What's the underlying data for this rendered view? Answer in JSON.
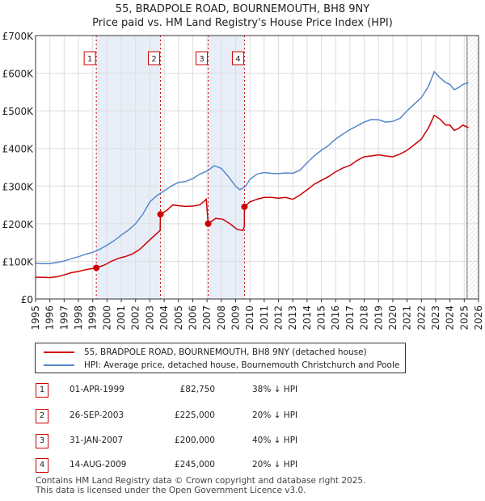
{
  "chart_data": {
    "type": "line",
    "title": "55, BRADPOLE ROAD, BOURNEMOUTH, BH8 9NY",
    "subtitle": "Price paid vs. HM Land Registry's House Price Index (HPI)",
    "xlim": [
      1995,
      2026
    ],
    "ylim": [
      0,
      700000
    ],
    "y_ticks": [
      {
        "value": 0,
        "label": "£0"
      },
      {
        "value": 100000,
        "label": "£100K"
      },
      {
        "value": 200000,
        "label": "£200K"
      },
      {
        "value": 300000,
        "label": "£300K"
      },
      {
        "value": 400000,
        "label": "£400K"
      },
      {
        "value": 500000,
        "label": "£500K"
      },
      {
        "value": 600000,
        "label": "£600K"
      },
      {
        "value": 700000,
        "label": "£700K"
      }
    ],
    "x_ticks": [
      "1995",
      "1996",
      "1997",
      "1998",
      "1999",
      "2000",
      "2001",
      "2002",
      "2003",
      "2004",
      "2005",
      "2006",
      "2007",
      "2008",
      "2009",
      "2010",
      "2011",
      "2012",
      "2013",
      "2014",
      "2015",
      "2016",
      "2017",
      "2018",
      "2019",
      "2020",
      "2021",
      "2022",
      "2023",
      "2024",
      "2025",
      "2026"
    ],
    "grid": true,
    "shaded_periods": [
      [
        1999.25,
        2003.73
      ],
      [
        2007.08,
        2009.62
      ]
    ],
    "forecast_start": 2025.2,
    "series": [
      {
        "name": "55, BRADPOLE ROAD, BOURNEMOUTH, BH8 9NY (detached house)",
        "color": "#cc0000",
        "points": [
          [
            1995.0,
            58000
          ],
          [
            1995.5,
            57500
          ],
          [
            1996.0,
            57000
          ],
          [
            1996.5,
            59000
          ],
          [
            1997.0,
            64000
          ],
          [
            1997.5,
            70000
          ],
          [
            1998.0,
            73000
          ],
          [
            1998.5,
            78000
          ],
          [
            1999.25,
            82750
          ],
          [
            1999.8,
            90000
          ],
          [
            2000.3,
            100000
          ],
          [
            2000.8,
            108000
          ],
          [
            2001.3,
            113000
          ],
          [
            2001.8,
            120000
          ],
          [
            2002.3,
            132000
          ],
          [
            2002.8,
            150000
          ],
          [
            2003.3,
            168000
          ],
          [
            2003.72,
            182000
          ],
          [
            2003.74,
            225000
          ],
          [
            2004.2,
            236000
          ],
          [
            2004.6,
            250000
          ],
          [
            2005.0,
            248000
          ],
          [
            2005.5,
            246000
          ],
          [
            2006.0,
            247000
          ],
          [
            2006.5,
            250000
          ],
          [
            2006.95,
            265000
          ],
          [
            2007.07,
            205000
          ],
          [
            2007.1,
            200000
          ],
          [
            2007.6,
            214000
          ],
          [
            2008.1,
            212000
          ],
          [
            2008.6,
            200000
          ],
          [
            2009.1,
            185000
          ],
          [
            2009.5,
            182000
          ],
          [
            2009.61,
            192000
          ],
          [
            2009.62,
            245000
          ],
          [
            2010.0,
            258000
          ],
          [
            2010.5,
            265000
          ],
          [
            2011.0,
            270000
          ],
          [
            2011.5,
            270000
          ],
          [
            2012.0,
            268000
          ],
          [
            2012.5,
            270000
          ],
          [
            2013.0,
            265000
          ],
          [
            2013.5,
            276000
          ],
          [
            2014.0,
            290000
          ],
          [
            2014.5,
            305000
          ],
          [
            2015.0,
            315000
          ],
          [
            2015.5,
            325000
          ],
          [
            2016.0,
            338000
          ],
          [
            2016.5,
            348000
          ],
          [
            2017.0,
            355000
          ],
          [
            2017.5,
            368000
          ],
          [
            2018.0,
            378000
          ],
          [
            2018.5,
            380000
          ],
          [
            2019.0,
            383000
          ],
          [
            2019.5,
            380000
          ],
          [
            2020.0,
            378000
          ],
          [
            2020.5,
            385000
          ],
          [
            2021.0,
            395000
          ],
          [
            2021.5,
            410000
          ],
          [
            2022.0,
            425000
          ],
          [
            2022.5,
            455000
          ],
          [
            2022.9,
            488000
          ],
          [
            2023.3,
            478000
          ],
          [
            2023.7,
            462000
          ],
          [
            2024.0,
            462000
          ],
          [
            2024.3,
            448000
          ],
          [
            2024.6,
            453000
          ],
          [
            2024.9,
            462000
          ],
          [
            2025.3,
            455000
          ]
        ]
      },
      {
        "name": "HPI: Average price, detached house, Bournemouth Christchurch and Poole",
        "color": "#5588cc",
        "points": [
          [
            1995.0,
            95000
          ],
          [
            1995.5,
            94000
          ],
          [
            1996.0,
            94000
          ],
          [
            1996.5,
            97000
          ],
          [
            1997.0,
            101000
          ],
          [
            1997.5,
            107000
          ],
          [
            1998.0,
            112000
          ],
          [
            1998.5,
            119000
          ],
          [
            1999.0,
            124000
          ],
          [
            1999.5,
            132000
          ],
          [
            2000.0,
            143000
          ],
          [
            2000.5,
            155000
          ],
          [
            2001.0,
            170000
          ],
          [
            2001.5,
            183000
          ],
          [
            2002.0,
            200000
          ],
          [
            2002.5,
            225000
          ],
          [
            2003.0,
            258000
          ],
          [
            2003.5,
            275000
          ],
          [
            2004.0,
            287000
          ],
          [
            2004.5,
            300000
          ],
          [
            2005.0,
            310000
          ],
          [
            2005.5,
            312000
          ],
          [
            2006.0,
            320000
          ],
          [
            2006.5,
            332000
          ],
          [
            2007.0,
            340000
          ],
          [
            2007.5,
            354000
          ],
          [
            2008.0,
            347000
          ],
          [
            2008.5,
            325000
          ],
          [
            2009.0,
            300000
          ],
          [
            2009.3,
            290000
          ],
          [
            2009.7,
            300000
          ],
          [
            2010.0,
            318000
          ],
          [
            2010.5,
            332000
          ],
          [
            2011.0,
            336000
          ],
          [
            2011.5,
            334000
          ],
          [
            2012.0,
            333000
          ],
          [
            2012.5,
            335000
          ],
          [
            2013.0,
            334000
          ],
          [
            2013.5,
            342000
          ],
          [
            2014.0,
            362000
          ],
          [
            2014.5,
            380000
          ],
          [
            2015.0,
            395000
          ],
          [
            2015.5,
            408000
          ],
          [
            2016.0,
            425000
          ],
          [
            2016.5,
            438000
          ],
          [
            2017.0,
            450000
          ],
          [
            2017.5,
            460000
          ],
          [
            2018.0,
            470000
          ],
          [
            2018.5,
            477000
          ],
          [
            2019.0,
            476000
          ],
          [
            2019.5,
            470000
          ],
          [
            2020.0,
            472000
          ],
          [
            2020.5,
            480000
          ],
          [
            2021.0,
            500000
          ],
          [
            2021.5,
            518000
          ],
          [
            2022.0,
            535000
          ],
          [
            2022.5,
            565000
          ],
          [
            2022.9,
            604000
          ],
          [
            2023.3,
            588000
          ],
          [
            2023.7,
            575000
          ],
          [
            2024.0,
            570000
          ],
          [
            2024.3,
            556000
          ],
          [
            2024.6,
            562000
          ],
          [
            2024.9,
            570000
          ],
          [
            2025.3,
            575000
          ]
        ]
      }
    ],
    "sales": [
      {
        "label": "1",
        "x": 1999.25,
        "value": 82750
      },
      {
        "label": "2",
        "x": 2003.74,
        "value": 225000
      },
      {
        "label": "3",
        "x": 2007.08,
        "value": 200000
      },
      {
        "label": "4",
        "x": 2009.62,
        "value": 245000
      }
    ]
  },
  "legend": {
    "property_label": "55, BRADPOLE ROAD, BOURNEMOUTH, BH8 9NY (detached house)",
    "hpi_label": "HPI: Average price, detached house, Bournemouth Christchurch and Poole"
  },
  "transactions": [
    {
      "num": "1",
      "date": "01-APR-1999",
      "price": "£82,750",
      "hpi": "38% ↓ HPI"
    },
    {
      "num": "2",
      "date": "26-SEP-2003",
      "price": "£225,000",
      "hpi": "20% ↓ HPI"
    },
    {
      "num": "3",
      "date": "31-JAN-2007",
      "price": "£200,000",
      "hpi": "40% ↓ HPI"
    },
    {
      "num": "4",
      "date": "14-AUG-2009",
      "price": "£245,000",
      "hpi": "20% ↓ HPI"
    }
  ],
  "footer": {
    "line1": "Contains HM Land Registry data © Crown copyright and database right 2025.",
    "line2": "This data is licensed under the Open Government Licence v3.0."
  },
  "colors": {
    "property": "#cc0000",
    "hpi": "#5588cc",
    "shade": "#e8eef8",
    "grid": "#dddddd"
  }
}
